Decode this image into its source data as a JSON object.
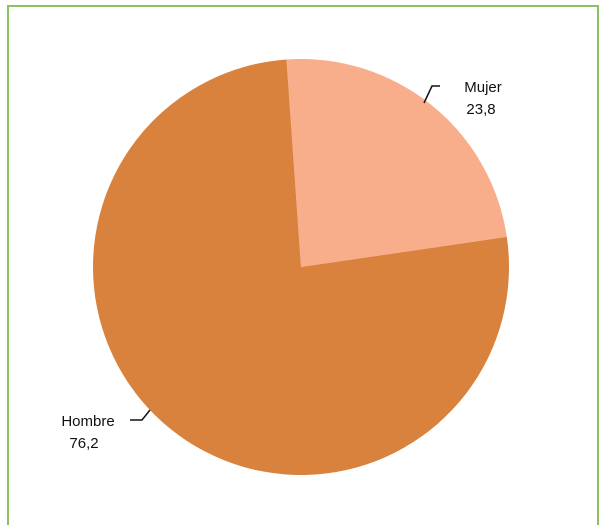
{
  "chart_data": {
    "type": "pie",
    "categories": [
      "Mujer",
      "Hombre"
    ],
    "values": [
      23.8,
      76.2
    ],
    "value_labels": [
      "23,8",
      "76,2"
    ],
    "colors": [
      "#f9ae8b",
      "#d9823e"
    ],
    "start_angle_deg": -4,
    "direction": "clockwise",
    "legend": "none",
    "frame_color": "#8cc063"
  }
}
